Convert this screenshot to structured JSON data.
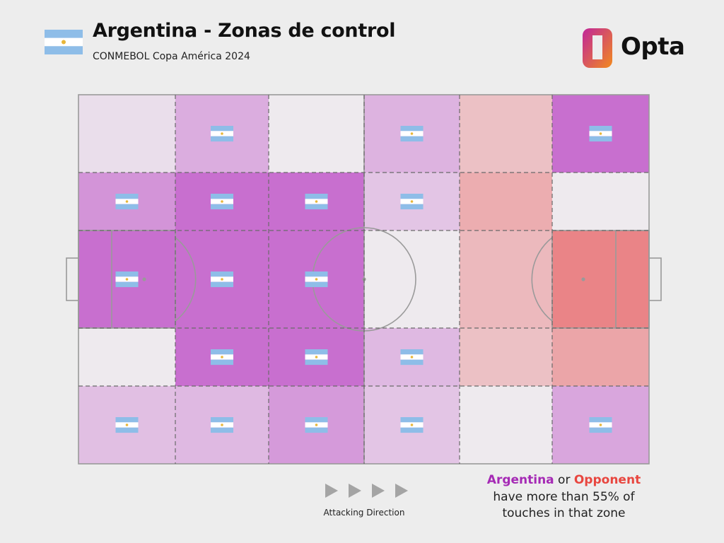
{
  "header": {
    "title": "Argentina - Zonas de control",
    "subtitle": "CONMEBOL Copa América 2024",
    "flag_icon": "argentina-flag-icon",
    "flag_colors": {
      "blue": "#8ebde8",
      "white": "#ffffff",
      "sun": "#e8b73a"
    }
  },
  "brand": {
    "name": "Opta",
    "logo_icon": "opta-logo-icon",
    "colors": {
      "magenta": "#c0269a",
      "orange": "#f28a1e"
    }
  },
  "chart_data": {
    "type": "heatmap",
    "description_scale": "5 rows x 6 columns zones of the pitch; value = Argentina share of touches (0-1); flag marks zones where Argentina > 0.55",
    "rows": 5,
    "cols": 6,
    "threshold": 0.55,
    "colors": {
      "team": "#c86fcf",
      "opponent": "#ea8487",
      "neutral": "#eeeaee"
    },
    "zones": [
      [
        0.52,
        0.6,
        0.5,
        0.59,
        0.4,
        0.72
      ],
      [
        0.64,
        0.7,
        0.7,
        0.56,
        0.35,
        0.5
      ],
      [
        0.7,
        0.7,
        0.7,
        0.5,
        0.38,
        0.25
      ],
      [
        0.5,
        0.7,
        0.7,
        0.58,
        0.4,
        0.33
      ],
      [
        0.57,
        0.58,
        0.63,
        0.56,
        0.5,
        0.61
      ]
    ],
    "flags": [
      [
        false,
        true,
        false,
        true,
        false,
        true
      ],
      [
        true,
        true,
        true,
        true,
        false,
        false
      ],
      [
        true,
        true,
        true,
        false,
        false,
        false
      ],
      [
        false,
        true,
        true,
        true,
        false,
        false
      ],
      [
        true,
        true,
        true,
        true,
        false,
        true
      ]
    ]
  },
  "footer": {
    "attacking_direction": "Attacking Direction",
    "arrow_icon": "play-arrow-icon",
    "legend_team": "Argentina",
    "legend_or": " or ",
    "legend_opponent": "Opponent",
    "legend_line2": "have more than 55% of",
    "legend_line3": "touches in that zone"
  }
}
